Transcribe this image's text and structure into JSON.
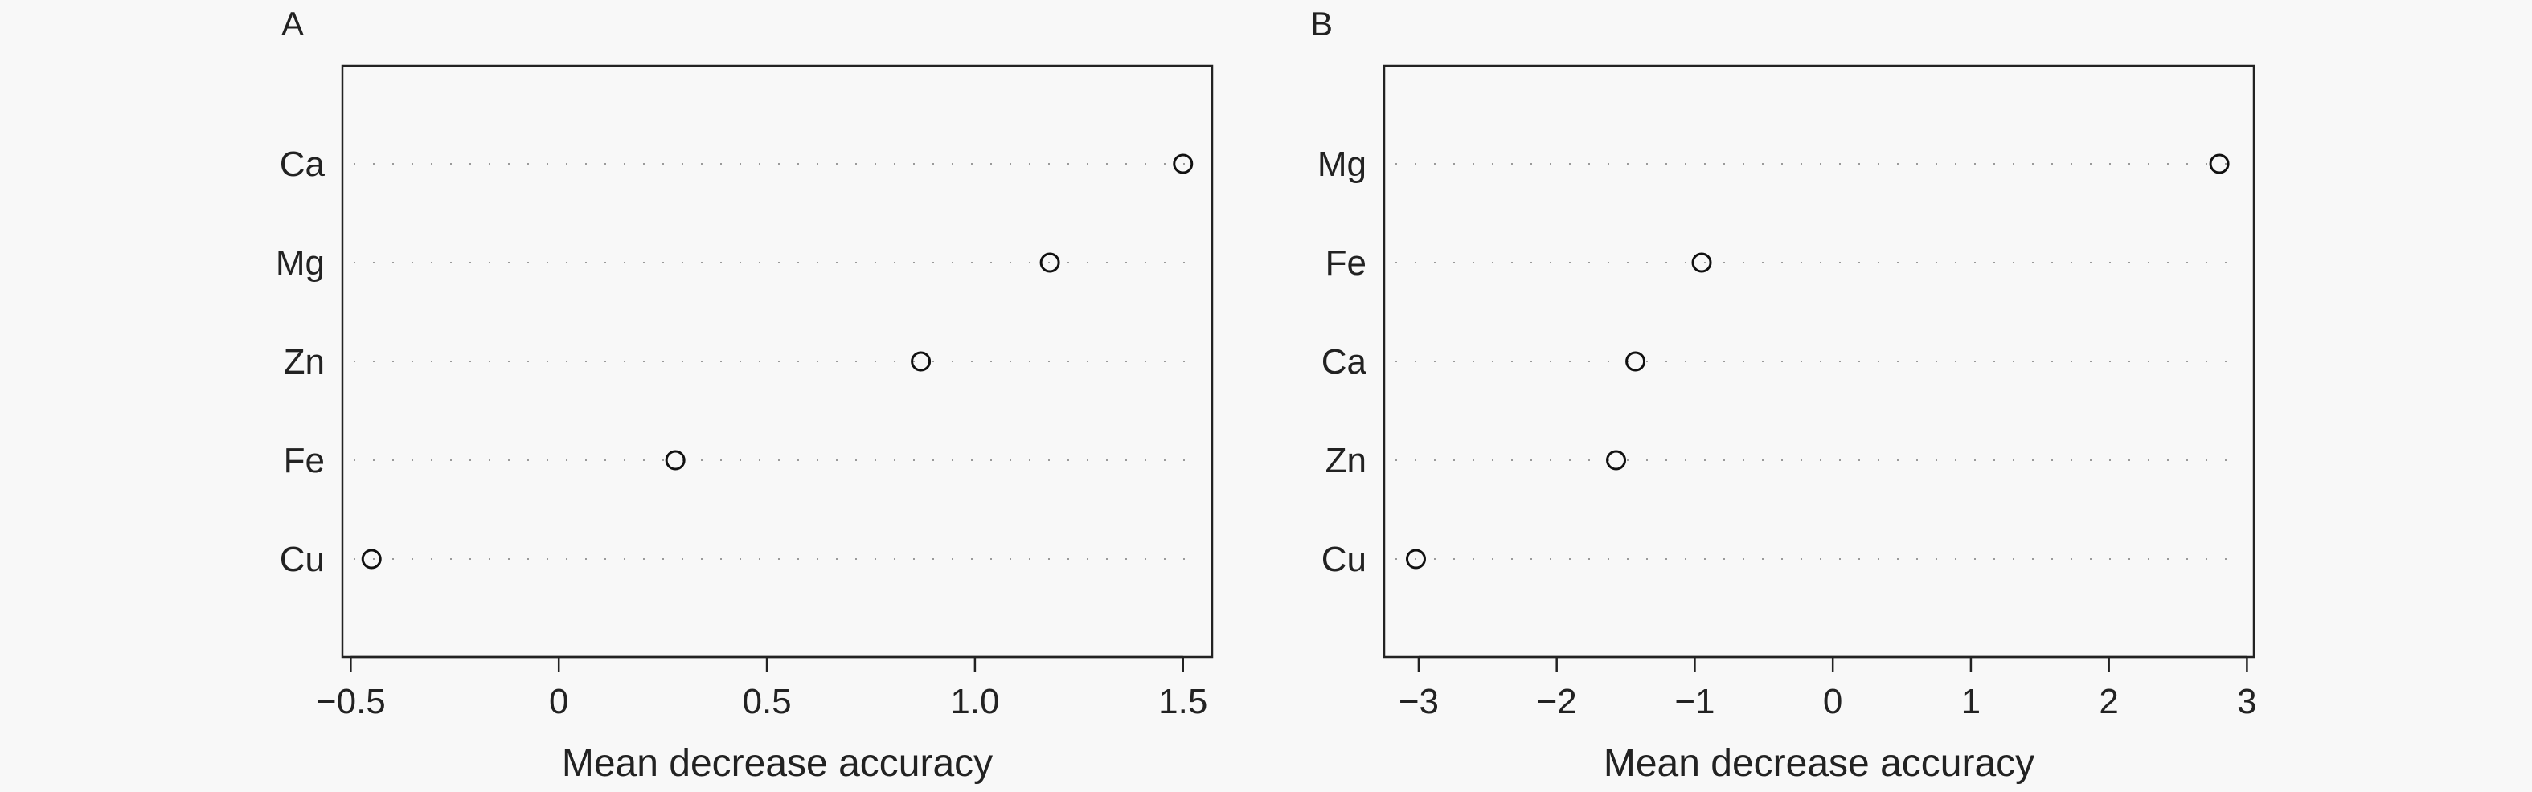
{
  "chart_data": [
    {
      "type": "scatter",
      "panel_label": "A",
      "xlabel": "Mean decrease accuracy",
      "ylabel": "",
      "xlim": [
        -0.52,
        1.57
      ],
      "xticks": [
        -0.5,
        0,
        0.5,
        1.0,
        1.5
      ],
      "xtick_labels": [
        "−0.5",
        "0",
        "0.5",
        "1.0",
        "1.5"
      ],
      "grid": "dotted horizontal lines per category",
      "categories": [
        "Ca",
        "Mg",
        "Zn",
        "Fe",
        "Cu"
      ],
      "values": [
        1.5,
        1.18,
        0.87,
        0.28,
        -0.45
      ]
    },
    {
      "type": "scatter",
      "panel_label": "B",
      "xlabel": "Mean decrease accuracy",
      "ylabel": "",
      "xlim": [
        -3.25,
        3.05
      ],
      "xticks": [
        -3,
        -2,
        -1,
        0,
        1,
        2,
        3
      ],
      "xtick_labels": [
        "−3",
        "−2",
        "−1",
        "0",
        "1",
        "2",
        "3"
      ],
      "grid": "dotted horizontal lines per category",
      "categories": [
        "Mg",
        "Fe",
        "Ca",
        "Zn",
        "Cu"
      ],
      "values": [
        2.8,
        -0.95,
        -1.43,
        -1.57,
        -3.02
      ]
    }
  ]
}
